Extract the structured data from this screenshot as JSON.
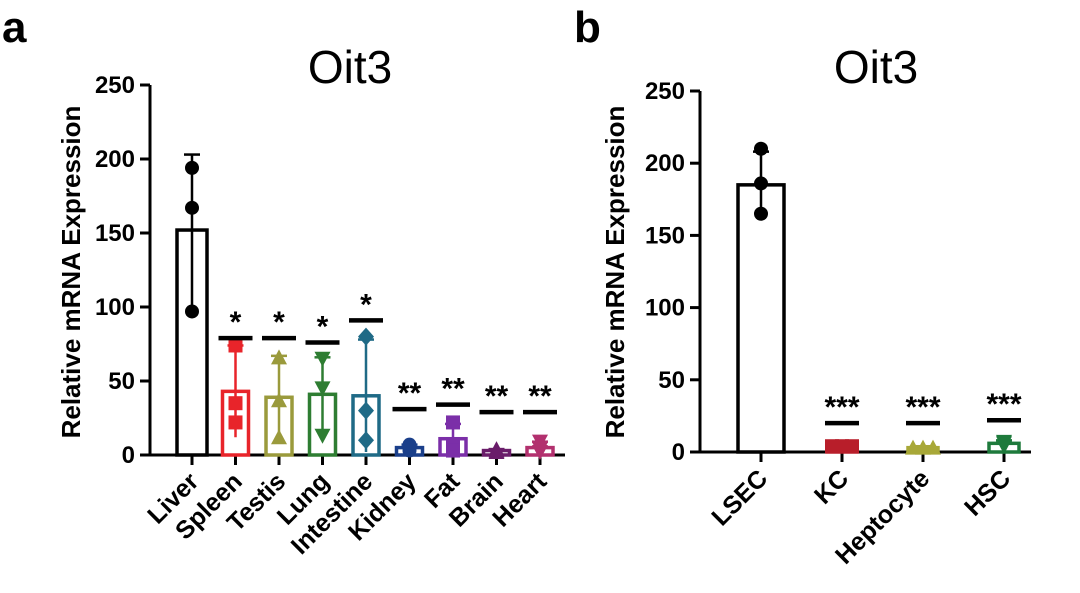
{
  "chart_data": [
    {
      "panel": "a",
      "type": "bar",
      "title": "Oit3",
      "ylabel": "Relative mRNA Expression",
      "xlabel": "",
      "ylim": [
        0,
        250
      ],
      "yticks": [
        0,
        50,
        100,
        150,
        200,
        250
      ],
      "categories": [
        "Liver",
        "Spleen",
        "Testis",
        "Lung",
        "Intestine",
        "Kidney",
        "Fat",
        "Brain",
        "Heart"
      ],
      "values": [
        152,
        43,
        39,
        41,
        40,
        5,
        11,
        3,
        5
      ],
      "errors": [
        51,
        31,
        28,
        25,
        38,
        2,
        10,
        1,
        4
      ],
      "points": [
        [
          194,
          167,
          97
        ],
        [
          74,
          35,
          22
        ],
        [
          66,
          37,
          12
        ],
        [
          65,
          45,
          13
        ],
        [
          80,
          30,
          10
        ],
        [
          7,
          5,
          3
        ],
        [
          22,
          7,
          3
        ],
        [
          4,
          3,
          2
        ],
        [
          9,
          4,
          2
        ]
      ],
      "markers": [
        "circle",
        "square",
        "triangle-up",
        "triangle-down",
        "diamond",
        "circle",
        "square",
        "triangle-up",
        "triangle-down"
      ],
      "colors": [
        "#000000",
        "#e8242a",
        "#9a9a3c",
        "#2e7d32",
        "#1f6a86",
        "#1a3f8a",
        "#7b2fa8",
        "#6a1d6a",
        "#b2306e"
      ],
      "significance": [
        "",
        "*",
        "*",
        "*",
        "*",
        "**",
        "**",
        "**",
        "**"
      ],
      "sig_line_values": [
        null,
        79,
        79,
        76,
        91,
        31,
        34,
        29,
        29
      ]
    },
    {
      "panel": "b",
      "type": "bar",
      "title": "Oit3",
      "ylabel": "Relative mRNA Expression",
      "xlabel": "",
      "ylim": [
        0,
        250
      ],
      "yticks": [
        0,
        50,
        100,
        150,
        200,
        250
      ],
      "categories": [
        "LSEC",
        "KC",
        "Heptocyte",
        "HSC"
      ],
      "values": [
        185,
        4,
        3,
        6
      ],
      "errors": [
        23,
        1,
        1,
        2
      ],
      "points": [
        [
          210,
          186,
          165
        ],
        [
          4,
          4,
          4
        ],
        [
          3,
          3,
          3
        ],
        [
          7,
          6,
          4
        ]
      ],
      "markers": [
        "circle",
        "square",
        "triangle-up",
        "triangle-down"
      ],
      "colors": [
        "#000000",
        "#b81e2a",
        "#a8a838",
        "#1e7a3c"
      ],
      "significance": [
        "",
        "***",
        "***",
        "***"
      ],
      "sig_line_values": [
        null,
        20,
        20,
        22
      ]
    }
  ]
}
